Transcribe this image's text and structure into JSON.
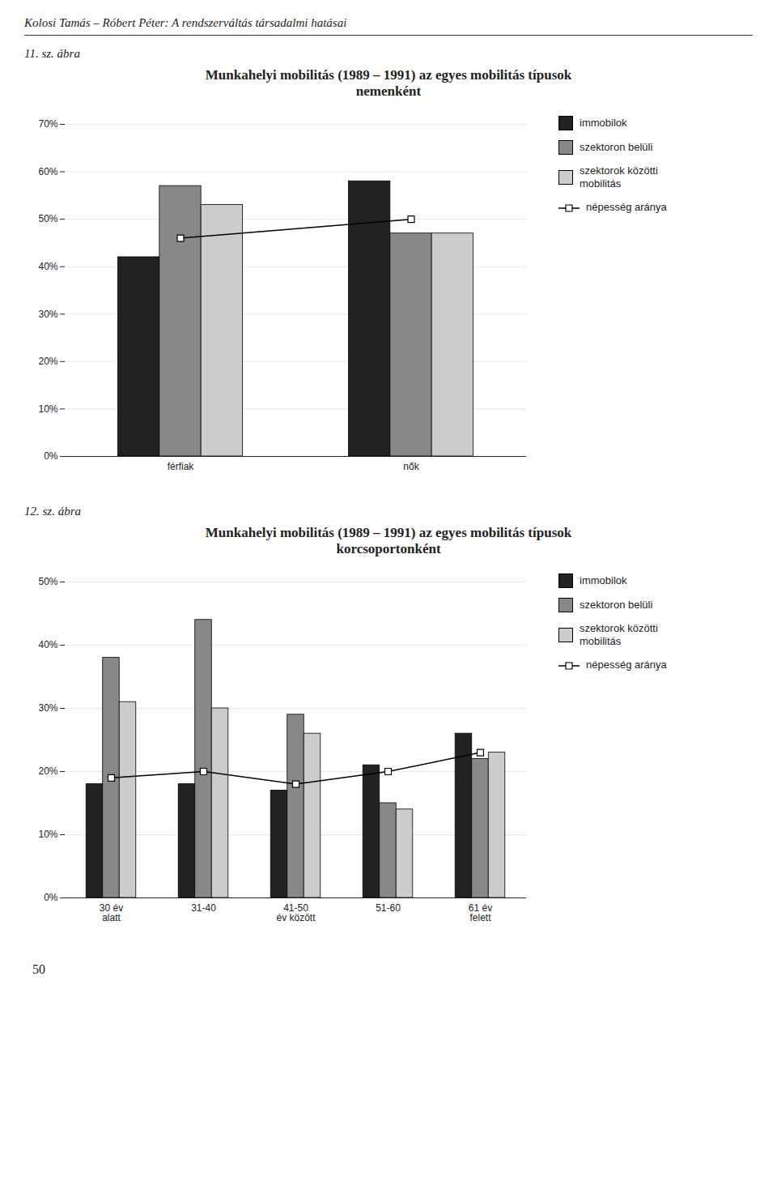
{
  "chart_data": [
    {
      "type": "bar",
      "annotations": [
        "Kolosi Tamás – Róbert Péter: A rendszerváltás társadalmi hatásai",
        "11. sz. ábra"
      ],
      "title": "Munkahelyi mobilitás (1989 – 1991) az egyes mobilitás típusok\nnemenként",
      "categories": [
        "férfiak",
        "nők"
      ],
      "series": [
        {
          "name": "immobilok",
          "type": "bar",
          "color": "#222222",
          "values": [
            42,
            58
          ]
        },
        {
          "name": "szektoron belüli",
          "type": "bar",
          "color": "#888888",
          "values": [
            57,
            47
          ]
        },
        {
          "name": "szektorok közötti\nmobilitás",
          "type": "bar",
          "color": "#cccccc",
          "values": [
            53,
            47
          ]
        },
        {
          "name": "népesség aránya",
          "type": "line",
          "color": "black",
          "marker": "square",
          "values": [
            46,
            50
          ]
        }
      ],
      "ylim": [
        0,
        70
      ],
      "yticks": [
        {
          "value": 0,
          "label": "0%"
        },
        {
          "value": 10,
          "label": "10%"
        },
        {
          "value": 20,
          "label": "20%"
        },
        {
          "value": 30,
          "label": "30%"
        },
        {
          "value": 40,
          "label": "40%"
        },
        {
          "value": 50,
          "label": "50%"
        },
        {
          "value": 60,
          "label": "60%"
        },
        {
          "value": 70,
          "label": "70%"
        }
      ],
      "grid": true,
      "legend": "right"
    },
    {
      "type": "bar",
      "annotations": [
        "12. sz. ábra",
        "50"
      ],
      "title": "Munkahelyi mobilitás (1989 – 1991) az egyes mobilitás típusok\nkorcsoportonként",
      "categories": [
        "30 év\nalatt",
        "31-40",
        "41-50\név között",
        "51-60",
        "61 év\nfelett"
      ],
      "series": [
        {
          "name": "immobilok",
          "type": "bar",
          "color": "#222222",
          "values": [
            18,
            18,
            17,
            21,
            26
          ]
        },
        {
          "name": "szektoron belüli",
          "type": "bar",
          "color": "#888888",
          "values": [
            38,
            44,
            29,
            15,
            22
          ]
        },
        {
          "name": "szektorok közötti\nmobilitás",
          "type": "bar",
          "color": "#cccccc",
          "values": [
            31,
            30,
            26,
            14,
            23
          ]
        },
        {
          "name": "népesség aránya",
          "type": "line",
          "color": "black",
          "marker": "square",
          "values": [
            19,
            20,
            18,
            20,
            23
          ]
        }
      ],
      "ylim": [
        0,
        50
      ],
      "yticks": [
        {
          "value": 0,
          "label": "0%"
        },
        {
          "value": 10,
          "label": "10%"
        },
        {
          "value": 20,
          "label": "20%"
        },
        {
          "value": 30,
          "label": "30%"
        },
        {
          "value": 40,
          "label": "40%"
        },
        {
          "value": 50,
          "label": "50%"
        }
      ],
      "grid": true,
      "legend": "right"
    }
  ]
}
